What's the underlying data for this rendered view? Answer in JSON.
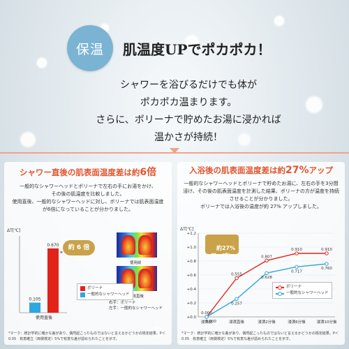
{
  "hero": {
    "badge": "保温",
    "headline": "肌温度UPでポカポカ！",
    "intro_lines": [
      "シャワーを浴びるだけでも体が",
      "ポカポカ温まります。",
      "さらに、ボリーナで貯めたお湯に浸かれば",
      "温かさが持続！"
    ]
  },
  "colors": {
    "accent_orange": "#e0552f",
    "divider": "#f0a38a",
    "bolina_red": "#e2231a",
    "standard_blue": "#2ea7e0",
    "badge_blue": "#7bb4d3",
    "callout_gold": "#c9a24a"
  },
  "left_panel": {
    "title_pre": "シャワー直後の肌表面温度差は約",
    "title_accent": "6倍",
    "body_lines": [
      "一般的なシャワーヘッドとボリーナで左右の手にお湯をかけ、",
      "その後の肌温度を比較しました。",
      "使用直後、一般的なシャワーヘッドに対し、ボリーナでは肌表面温度",
      "が6倍になっていることが分かりました。"
    ],
    "callout": "約 6 倍",
    "thermo_captions": [
      "使用前",
      "使用直後"
    ],
    "thermo_side_caption": "右手：ボリーナ\n左手：一般的なシャワーヘッド",
    "footnote": "*マーク：統計学的に確かな差があり、偶然起こったものではないと言えるかどうかの検定結果。P＜0.05　有意確立（両側検定）5%で有意な差が認められたことを示す。"
  },
  "right_panel": {
    "title_pre": "入浴後の肌表面温度差は約",
    "title_accent": "27%",
    "title_post": "アップ",
    "body_lines": [
      "一般的なシャワーヘッドとボリーナで貯めたお湯に、左右の手を3分間",
      "浸け、その後の肌表面温度を計測した結果、ボリーナの方が温度を持続",
      "させることが分かりました。",
      "ボリーナでは入浴後の温度が約 27% アップしました。"
    ],
    "callout": "約27%\nアップ！",
    "footnote": "*マーク：統計学的に確かな差があり、偶然起こったものではないと言えるかどうかの検定結果。P＜0.05　有意確立（両側検定）5%で有意な差が認められたことを示す。"
  },
  "chart_data": [
    {
      "type": "bar",
      "title": "",
      "xlabel": "",
      "ylabel": "ΔT[℃]",
      "categories": [
        "使用直後"
      ],
      "series": [
        {
          "name": "一般的なシャワーヘッド",
          "values": [
            0.105
          ],
          "color": "#2ea7e0"
        },
        {
          "name": "ボリーナ",
          "values": [
            0.67
          ],
          "color": "#e2231a"
        }
      ],
      "data_labels": [
        "0.105",
        "0.670"
      ],
      "ylim": [
        0,
        0.8
      ],
      "legend": "bottom-right",
      "annotation": "*"
    },
    {
      "type": "line",
      "title": "",
      "xlabel": "",
      "ylabel": "ΔT[℃]",
      "categories": [
        "浸漬前",
        "浸漬直後",
        "浸漬2分後",
        "浸漬6分後",
        "浸漬10分後"
      ],
      "series": [
        {
          "name": "ボリーナ",
          "values": [
            0.0,
            0.555,
            0.807,
            0.91,
            0.91
          ],
          "color": "#e2231a"
        },
        {
          "name": "一般的なシャワーヘッド",
          "values": [
            0.0,
            0.257,
            0.628,
            0.717,
            0.76
          ],
          "color": "#2ea7e0"
        }
      ],
      "y_ticks": [
        "+0.0",
        "+0.2",
        "+0.4",
        "+0.6",
        "+0.8",
        "+1.0",
        "+1.2"
      ],
      "ylim": [
        0,
        1.2
      ],
      "legend": "bottom-right",
      "grid": true
    }
  ]
}
